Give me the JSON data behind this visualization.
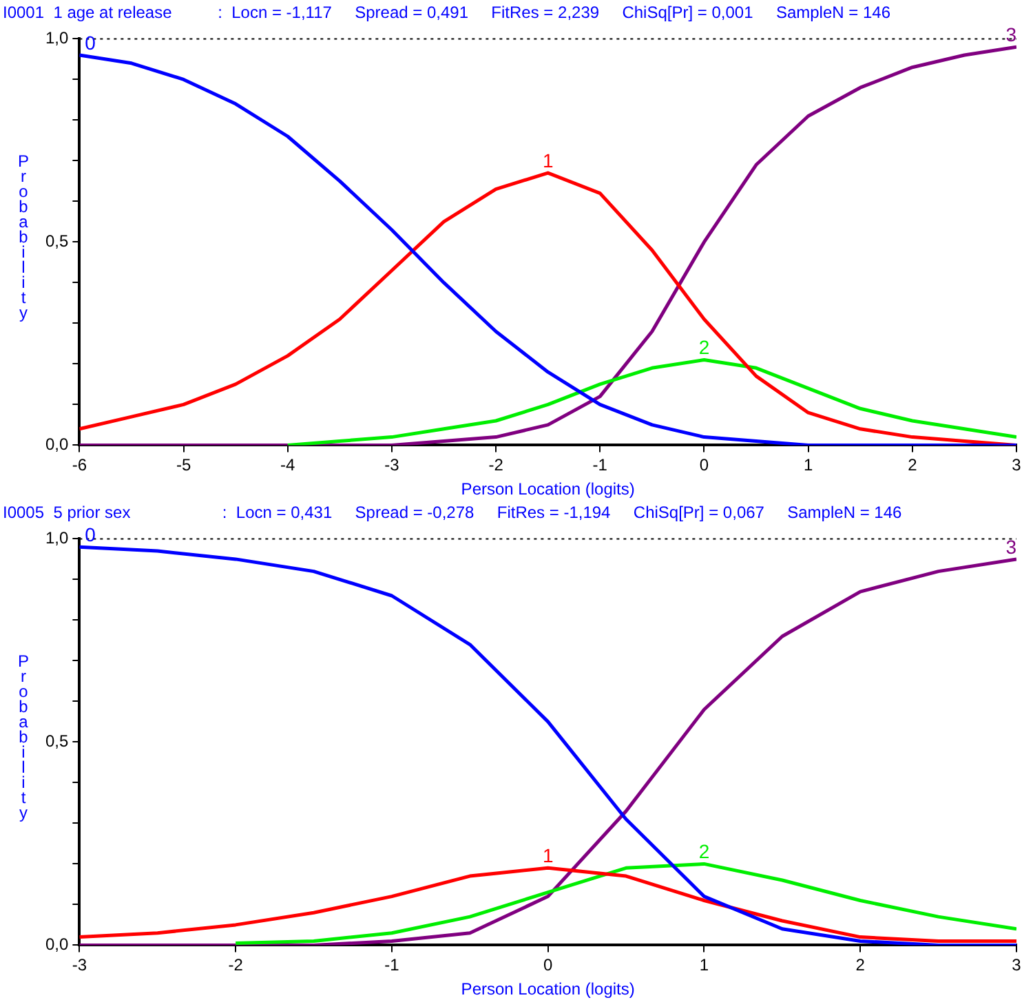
{
  "chart_data": [
    {
      "type": "line",
      "title": "I0001  1 age at release          :  Locn = -1,117     Spread = 0,491     FitRes = 2,239     ChiSq[Pr] = 0,001     SampleN = 146",
      "xlabel": "Person Location (logits)",
      "ylabel": "Probability",
      "x": [
        -6,
        -5.5,
        -5,
        -4.5,
        -4,
        -3.5,
        -3,
        -2.5,
        -2,
        -1.5,
        -1,
        -0.5,
        0,
        0.5,
        1,
        1.5,
        2,
        2.5,
        3
      ],
      "series": [
        {
          "name": "0",
          "color": "#0000ff",
          "values": [
            0.96,
            0.94,
            0.9,
            0.84,
            0.76,
            0.65,
            0.53,
            0.4,
            0.28,
            0.18,
            0.1,
            0.05,
            0.02,
            0.01,
            0,
            0,
            0,
            0,
            0
          ]
        },
        {
          "name": "1",
          "color": "#ff0000",
          "values": [
            0.04,
            0.07,
            0.1,
            0.15,
            0.22,
            0.31,
            0.43,
            0.55,
            0.63,
            0.67,
            0.62,
            0.48,
            0.31,
            0.17,
            0.08,
            0.04,
            0.02,
            0.01,
            0
          ]
        },
        {
          "name": "2",
          "color": "#00ee00",
          "values": [
            null,
            null,
            null,
            null,
            0,
            0.01,
            0.02,
            0.04,
            0.06,
            0.1,
            0.15,
            0.19,
            0.21,
            0.19,
            0.14,
            0.09,
            0.06,
            0.04,
            0.02
          ]
        },
        {
          "name": "3",
          "color": "#800080",
          "values": [
            0,
            0,
            0,
            0,
            0,
            0,
            0,
            0.01,
            0.02,
            0.05,
            0.12,
            0.28,
            0.5,
            0.69,
            0.81,
            0.88,
            0.93,
            0.96,
            0.98
          ]
        }
      ],
      "xlim": [
        -6,
        3
      ],
      "xticks": [
        -6,
        -5,
        -4,
        -3,
        -2,
        -1,
        0,
        1,
        2,
        3
      ],
      "ylim": [
        0,
        1
      ],
      "yticks": [
        {
          "value": 0,
          "label": "0,0"
        },
        {
          "value": 0.1,
          "label": null
        },
        {
          "value": 0.2,
          "label": null
        },
        {
          "value": 0.3,
          "label": null
        },
        {
          "value": 0.4,
          "label": null
        },
        {
          "value": 0.5,
          "label": "0,5"
        },
        {
          "value": 0.6,
          "label": null
        },
        {
          "value": 0.7,
          "label": null
        },
        {
          "value": 0.8,
          "label": null
        },
        {
          "value": 0.9,
          "label": null
        },
        {
          "value": 1,
          "label": "1,0"
        }
      ],
      "ref_lines": [
        {
          "axis": "y",
          "value": 1,
          "color": "#000000",
          "line_style": "dotted"
        }
      ],
      "grid": false,
      "legend": false,
      "marker": "none",
      "line_style": "solid"
    },
    {
      "type": "line",
      "title": "I0005  5 prior sex                    :  Locn = 0,431     Spread = -0,278     FitRes = -1,194     ChiSq[Pr] = 0,067     SampleN = 146",
      "xlabel": "Person Location (logits)",
      "ylabel": "Probability",
      "x": [
        -3,
        -2.5,
        -2,
        -1.5,
        -1,
        -0.5,
        0,
        0.5,
        1,
        1.5,
        2,
        2.5,
        3
      ],
      "series": [
        {
          "name": "0",
          "color": "#0000ff",
          "values": [
            0.98,
            0.97,
            0.95,
            0.92,
            0.86,
            0.74,
            0.55,
            0.31,
            0.12,
            0.04,
            0.01,
            0,
            0
          ]
        },
        {
          "name": "1",
          "color": "#ff0000",
          "values": [
            0.02,
            0.03,
            0.05,
            0.08,
            0.12,
            0.17,
            0.19,
            0.17,
            0.11,
            0.06,
            0.02,
            0.01,
            0.01
          ]
        },
        {
          "name": "2",
          "color": "#00ee00",
          "values": [
            null,
            null,
            0.005,
            0.01,
            0.03,
            0.07,
            0.13,
            0.19,
            0.2,
            0.16,
            0.11,
            0.07,
            0.04
          ]
        },
        {
          "name": "3",
          "color": "#800080",
          "values": [
            0,
            0,
            0,
            0,
            0.01,
            0.03,
            0.12,
            0.33,
            0.58,
            0.76,
            0.87,
            0.92,
            0.95
          ]
        }
      ],
      "xlim": [
        -3,
        3
      ],
      "xticks": [
        -3,
        -2,
        -1,
        0,
        1,
        2,
        3
      ],
      "ylim": [
        0,
        1
      ],
      "yticks": [
        {
          "value": 0,
          "label": "0,0"
        },
        {
          "value": 0.1,
          "label": null
        },
        {
          "value": 0.2,
          "label": null
        },
        {
          "value": 0.3,
          "label": null
        },
        {
          "value": 0.4,
          "label": null
        },
        {
          "value": 0.5,
          "label": "0,5"
        },
        {
          "value": 0.6,
          "label": null
        },
        {
          "value": 0.7,
          "label": null
        },
        {
          "value": 0.8,
          "label": null
        },
        {
          "value": 0.9,
          "label": null
        },
        {
          "value": 1,
          "label": "1,0"
        }
      ],
      "ref_lines": [
        {
          "axis": "y",
          "value": 1,
          "color": "#000000",
          "line_style": "dotted"
        }
      ],
      "grid": false,
      "legend": false,
      "marker": "none",
      "line_style": "solid"
    }
  ]
}
